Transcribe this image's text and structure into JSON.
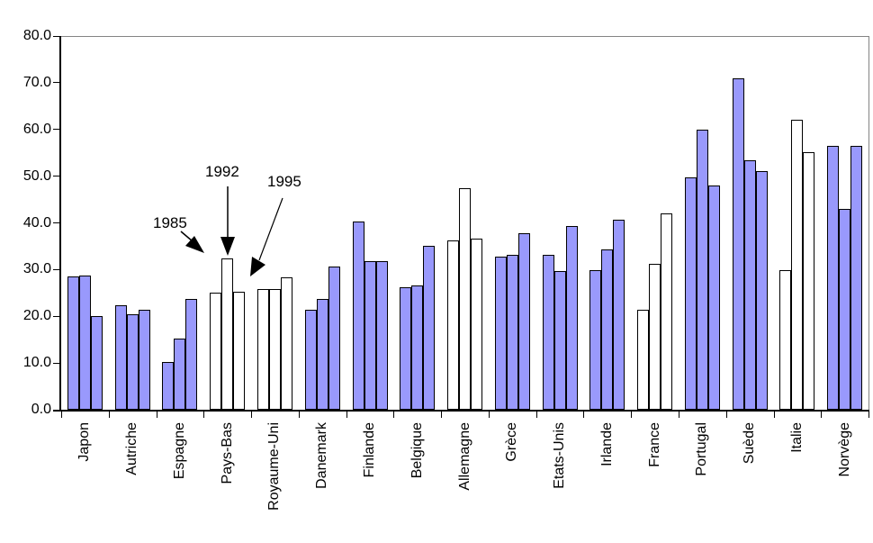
{
  "chart_data": {
    "type": "bar",
    "title": "",
    "xlabel": "",
    "ylabel": "",
    "categories": [
      "Japon",
      "Autriche",
      "Espagne",
      "Pays-Bas",
      "Royaume-Uni",
      "Danemark",
      "Finlande",
      "Belgique",
      "Allemagne",
      "Grèce",
      "Etats-Unis",
      "Irlande",
      "France",
      "Portugal",
      "Suède",
      "Italie",
      "Norvège"
    ],
    "series": [
      {
        "name": "1985",
        "values": [
          28.5,
          22.3,
          10.3,
          25.0,
          25.8,
          21.5,
          40.3,
          26.2,
          36.3,
          32.8,
          33.2,
          29.9,
          21.5,
          49.8,
          71.0,
          29.9,
          56.5
        ]
      },
      {
        "name": "1992",
        "values": [
          28.8,
          20.4,
          15.3,
          32.3,
          25.8,
          23.7,
          31.8,
          26.7,
          47.5,
          33.1,
          29.7,
          34.3,
          31.2,
          59.9,
          53.5,
          62.0,
          43.0
        ]
      },
      {
        "name": "1995",
        "values": [
          20.0,
          21.4,
          23.8,
          25.2,
          28.4,
          30.6,
          31.8,
          35.1,
          36.6,
          37.8,
          39.4,
          40.6,
          42.1,
          48.0,
          51.0,
          55.2,
          56.4
        ]
      }
    ],
    "white_categories": [
      "Pays-Bas",
      "Royaume-Uni",
      "Allemagne",
      "France",
      "Italie"
    ],
    "y_axis": {
      "min": 0,
      "max": 80,
      "step": 10,
      "tick_labels": [
        "0.0",
        "10.0",
        "20.0",
        "30.0",
        "40.0",
        "50.0",
        "60.0",
        "70.0",
        "80.0"
      ]
    },
    "annotations": [
      {
        "label": "1985",
        "points_to": "Pays-Bas 1985 bar"
      },
      {
        "label": "1992",
        "points_to": "Pays-Bas 1992 bar"
      },
      {
        "label": "1995",
        "points_to": "Pays-Bas 1995 bar"
      }
    ],
    "legend_position": "none",
    "grid": "off",
    "colors": {
      "bar_fill": "#9999FC",
      "bar_white": "#FFFFFF",
      "bar_border": "#000000",
      "axis": "#000000",
      "plot_border": "#848484"
    }
  }
}
